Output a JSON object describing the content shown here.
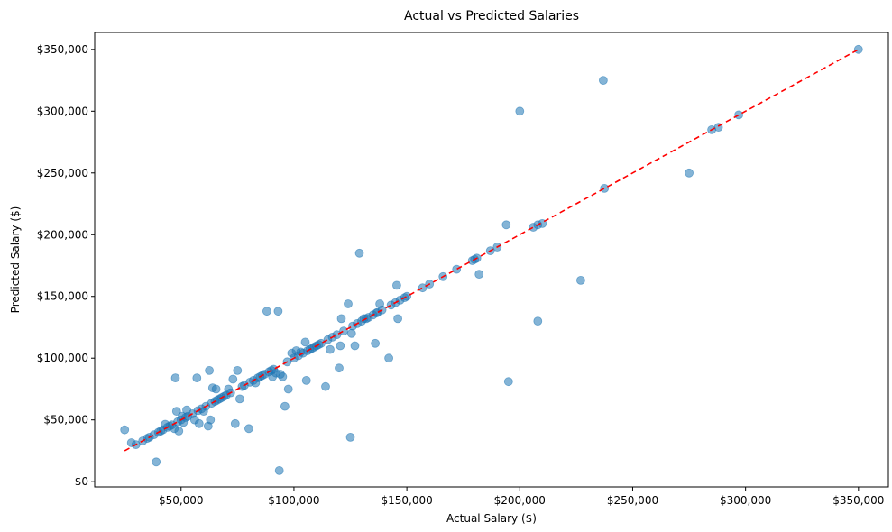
{
  "chart_data": {
    "type": "scatter",
    "title": "Actual vs Predicted Salaries",
    "xlabel": "Actual Salary ($)",
    "ylabel": "Predicted Salary ($)",
    "xlim": [
      11750,
      363250
    ],
    "ylim": [
      -4250,
      363750
    ],
    "x_ticks": [
      50000,
      100000,
      150000,
      200000,
      250000,
      300000,
      350000
    ],
    "x_tick_labels": [
      "$50,000",
      "$100,000",
      "$150,000",
      "$200,000",
      "$250,000",
      "$300,000",
      "$350,000"
    ],
    "y_ticks": [
      0,
      50000,
      100000,
      150000,
      200000,
      250000,
      300000,
      350000
    ],
    "y_tick_labels": [
      "$0",
      "$50,000",
      "$100,000",
      "$150,000",
      "$200,000",
      "$250,000",
      "$300,000",
      "$350,000"
    ],
    "grid": false,
    "point_color": "#1f77b4",
    "point_alpha": 0.55,
    "reference_line": {
      "style": "dashed",
      "color": "#ff0000",
      "from": [
        25000,
        25000
      ],
      "to": [
        350000,
        350000
      ]
    },
    "points": [
      [
        25000,
        42000
      ],
      [
        28000,
        31500
      ],
      [
        30000,
        30000
      ],
      [
        33000,
        33000
      ],
      [
        35000,
        35000
      ],
      [
        36000,
        36000
      ],
      [
        38000,
        38000
      ],
      [
        39000,
        16000
      ],
      [
        40000,
        40000
      ],
      [
        41000,
        41000
      ],
      [
        42000,
        42000
      ],
      [
        43000,
        46500
      ],
      [
        44000,
        44000
      ],
      [
        45000,
        45000
      ],
      [
        46000,
        46000
      ],
      [
        47000,
        43000
      ],
      [
        47500,
        84000
      ],
      [
        48000,
        57000
      ],
      [
        48500,
        48500
      ],
      [
        49000,
        41000
      ],
      [
        50000,
        50000
      ],
      [
        50500,
        53000
      ],
      [
        51000,
        48000
      ],
      [
        52000,
        52000
      ],
      [
        52500,
        58000
      ],
      [
        53000,
        53000
      ],
      [
        55000,
        55000
      ],
      [
        56000,
        50000
      ],
      [
        57000,
        84000
      ],
      [
        57500,
        57500
      ],
      [
        58000,
        47000
      ],
      [
        59000,
        59000
      ],
      [
        60000,
        57000
      ],
      [
        61000,
        61000
      ],
      [
        62000,
        45000
      ],
      [
        62500,
        90000
      ],
      [
        63000,
        50000
      ],
      [
        63500,
        63500
      ],
      [
        64000,
        76000
      ],
      [
        65000,
        65000
      ],
      [
        65500,
        75000
      ],
      [
        66000,
        66000
      ],
      [
        67000,
        67000
      ],
      [
        68000,
        68000
      ],
      [
        69000,
        69000
      ],
      [
        70000,
        70000
      ],
      [
        71000,
        75000
      ],
      [
        72000,
        72000
      ],
      [
        73000,
        83000
      ],
      [
        74000,
        47000
      ],
      [
        75000,
        90000
      ],
      [
        76000,
        67000
      ],
      [
        77000,
        77000
      ],
      [
        78000,
        78000
      ],
      [
        80000,
        43000
      ],
      [
        80500,
        80500
      ],
      [
        82000,
        82000
      ],
      [
        83000,
        80000
      ],
      [
        84000,
        84000
      ],
      [
        85000,
        85000
      ],
      [
        86000,
        86000
      ],
      [
        87000,
        87000
      ],
      [
        88000,
        138000
      ],
      [
        89000,
        89000
      ],
      [
        90000,
        90000
      ],
      [
        90500,
        85000
      ],
      [
        91000,
        91000
      ],
      [
        92000,
        88000
      ],
      [
        93000,
        138000
      ],
      [
        93500,
        9000
      ],
      [
        94000,
        87000
      ],
      [
        95000,
        85000
      ],
      [
        96000,
        61000
      ],
      [
        97000,
        97000
      ],
      [
        97500,
        75000
      ],
      [
        99000,
        104000
      ],
      [
        100000,
        100000
      ],
      [
        101000,
        106000
      ],
      [
        102000,
        102000
      ],
      [
        103000,
        105000
      ],
      [
        104000,
        104000
      ],
      [
        105000,
        113000
      ],
      [
        105500,
        82000
      ],
      [
        106000,
        106000
      ],
      [
        107000,
        107000
      ],
      [
        108000,
        108000
      ],
      [
        109000,
        109000
      ],
      [
        110000,
        110000
      ],
      [
        111000,
        111000
      ],
      [
        112000,
        112000
      ],
      [
        114000,
        77000
      ],
      [
        115000,
        115000
      ],
      [
        116000,
        107000
      ],
      [
        117000,
        117000
      ],
      [
        119000,
        119000
      ],
      [
        120000,
        92000
      ],
      [
        120500,
        110000
      ],
      [
        121000,
        132000
      ],
      [
        122000,
        122000
      ],
      [
        124000,
        144000
      ],
      [
        125000,
        36000
      ],
      [
        125500,
        120000
      ],
      [
        126000,
        126000
      ],
      [
        127000,
        110000
      ],
      [
        128000,
        128000
      ],
      [
        129000,
        185000
      ],
      [
        130000,
        130000
      ],
      [
        131000,
        132000
      ],
      [
        132000,
        132000
      ],
      [
        133000,
        133000
      ],
      [
        135000,
        135000
      ],
      [
        136000,
        112000
      ],
      [
        136500,
        136500
      ],
      [
        137000,
        137000
      ],
      [
        138000,
        144000
      ],
      [
        139000,
        139000
      ],
      [
        142000,
        100000
      ],
      [
        143000,
        143000
      ],
      [
        145000,
        145000
      ],
      [
        145500,
        159000
      ],
      [
        146000,
        132000
      ],
      [
        147000,
        147000
      ],
      [
        149000,
        149000
      ],
      [
        150000,
        150000
      ],
      [
        157000,
        157000
      ],
      [
        160000,
        160000
      ],
      [
        166000,
        166000
      ],
      [
        172000,
        172000
      ],
      [
        179000,
        179000
      ],
      [
        180000,
        180000
      ],
      [
        181000,
        181000
      ],
      [
        182000,
        168000
      ],
      [
        187000,
        187000
      ],
      [
        190000,
        190000
      ],
      [
        194000,
        208000
      ],
      [
        195000,
        81000
      ],
      [
        200000,
        300000
      ],
      [
        206000,
        206000
      ],
      [
        208000,
        208000
      ],
      [
        208000,
        130000
      ],
      [
        210000,
        209000
      ],
      [
        227000,
        163000
      ],
      [
        237000,
        325000
      ],
      [
        237500,
        237500
      ],
      [
        275000,
        250000
      ],
      [
        285000,
        285000
      ],
      [
        288000,
        287000
      ],
      [
        297000,
        297000
      ],
      [
        350000,
        350000
      ]
    ]
  }
}
